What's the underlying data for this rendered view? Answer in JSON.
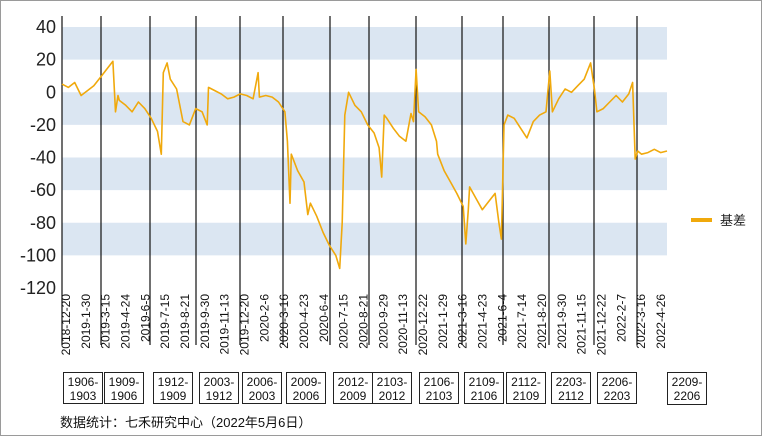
{
  "chart_data": {
    "type": "line",
    "title": "",
    "xlabel": "",
    "ylabel": "",
    "ylim": [
      -120,
      40
    ],
    "yticks": [
      40,
      20,
      0,
      -20,
      -40,
      -60,
      -80,
      -100,
      -120
    ],
    "grid": "alternating horizontal bands",
    "legend_position": "right",
    "xtick_labels": [
      "2018-12-20",
      "2019-1-30",
      "2019-3-15",
      "2019-4-24",
      "2019-6-5",
      "2019-7-15",
      "2019-8-21",
      "2019-9-30",
      "2019-11-13",
      "2019-12-20",
      "2020-2-6",
      "2020-3-16",
      "2020-4-23",
      "2020-6-4",
      "2020-7-15",
      "2020-8-21",
      "2020-9-29",
      "2020-11-13",
      "2020-12-22",
      "2021-1-29",
      "2021-3-16",
      "2021-4-23",
      "2021-6-4",
      "2021-7-14",
      "2021-8-20",
      "2021-9-30",
      "2021-11-15",
      "2021-12-22",
      "2022-2-7",
      "2022-3-16",
      "2022-4-26"
    ],
    "contract_boxes": [
      {
        "l1": "1906-",
        "l2": "1903"
      },
      {
        "l1": "1909-",
        "l2": "1906"
      },
      {
        "l1": "1912-",
        "l2": "1909"
      },
      {
        "l1": "2003-",
        "l2": "1912"
      },
      {
        "l1": "2006-",
        "l2": "2003"
      },
      {
        "l1": "2009-",
        "l2": "2006"
      },
      {
        "l1": "2012-",
        "l2": "2009"
      },
      {
        "l1": "2103-",
        "l2": "2012"
      },
      {
        "l1": "2106-",
        "l2": "2103"
      },
      {
        "l1": "2109-",
        "l2": "2106"
      },
      {
        "l1": "2112-",
        "l2": "2109"
      },
      {
        "l1": "2203-",
        "l2": "2112"
      },
      {
        "l1": "2206-",
        "l2": "2203"
      },
      {
        "l1": "2209-",
        "l2": "2206"
      }
    ],
    "series": [
      {
        "name": "基差",
        "color": "#f0a90c",
        "points": [
          [
            0,
            5
          ],
          [
            1,
            3
          ],
          [
            2,
            6
          ],
          [
            3,
            -2
          ],
          [
            4,
            1
          ],
          [
            5,
            4
          ],
          [
            6,
            9
          ],
          [
            7,
            14
          ],
          [
            8,
            19
          ],
          [
            8.4,
            -12
          ],
          [
            8.8,
            -2
          ],
          [
            9,
            -5
          ],
          [
            10,
            -8
          ],
          [
            11,
            -12
          ],
          [
            12,
            -6
          ],
          [
            13,
            -10
          ],
          [
            14,
            -16
          ],
          [
            15,
            -24
          ],
          [
            15.6,
            -38
          ],
          [
            15.9,
            12
          ],
          [
            16.5,
            18
          ],
          [
            17,
            8
          ],
          [
            18,
            2
          ],
          [
            19,
            -18
          ],
          [
            20,
            -20
          ],
          [
            21,
            -10
          ],
          [
            22,
            -12
          ],
          [
            22.8,
            -20
          ],
          [
            23,
            3
          ],
          [
            24,
            1
          ],
          [
            25,
            -1
          ],
          [
            26,
            -4
          ],
          [
            27,
            -3
          ],
          [
            28,
            -1
          ],
          [
            29,
            -2
          ],
          [
            30,
            -4
          ],
          [
            30.8,
            12
          ],
          [
            31,
            -3
          ],
          [
            32,
            -2
          ],
          [
            33,
            -3
          ],
          [
            34,
            -6
          ],
          [
            35,
            -12
          ],
          [
            35.4,
            -30
          ],
          [
            35.8,
            -68
          ],
          [
            36,
            -38
          ],
          [
            37,
            -48
          ],
          [
            38,
            -55
          ],
          [
            38.6,
            -75
          ],
          [
            39,
            -68
          ],
          [
            40,
            -76
          ],
          [
            41,
            -86
          ],
          [
            42,
            -94
          ],
          [
            43,
            -100
          ],
          [
            43.6,
            -108
          ],
          [
            44,
            -80
          ],
          [
            44.4,
            -14
          ],
          [
            45,
            0
          ],
          [
            46,
            -8
          ],
          [
            47,
            -12
          ],
          [
            48,
            -20
          ],
          [
            49,
            -25
          ],
          [
            49.8,
            -34
          ],
          [
            50.2,
            -52
          ],
          [
            50.6,
            -14
          ],
          [
            51,
            -16
          ],
          [
            52,
            -22
          ],
          [
            53,
            -27
          ],
          [
            54,
            -30
          ],
          [
            54.8,
            -13
          ],
          [
            55.2,
            -18
          ],
          [
            55.6,
            14
          ],
          [
            56,
            -12
          ],
          [
            57,
            -15
          ],
          [
            58,
            -20
          ],
          [
            58.8,
            -30
          ],
          [
            59,
            -38
          ],
          [
            60,
            -48
          ],
          [
            61,
            -55
          ],
          [
            62,
            -62
          ],
          [
            63,
            -70
          ],
          [
            63.4,
            -93
          ],
          [
            63.8,
            -72
          ],
          [
            64,
            -58
          ],
          [
            65,
            -65
          ],
          [
            66,
            -72
          ],
          [
            67,
            -67
          ],
          [
            68,
            -62
          ],
          [
            68.6,
            -80
          ],
          [
            69,
            -90
          ],
          [
            69.4,
            -20
          ],
          [
            70,
            -14
          ],
          [
            71,
            -16
          ],
          [
            72,
            -22
          ],
          [
            73,
            -28
          ],
          [
            74,
            -18
          ],
          [
            75,
            -14
          ],
          [
            76,
            -12
          ],
          [
            76.6,
            13
          ],
          [
            77,
            -12
          ],
          [
            78,
            -4
          ],
          [
            79,
            2
          ],
          [
            80,
            0
          ],
          [
            81,
            4
          ],
          [
            82,
            8
          ],
          [
            83,
            18
          ],
          [
            83.6,
            2
          ],
          [
            84,
            -12
          ],
          [
            85,
            -10
          ],
          [
            86,
            -6
          ],
          [
            87,
            -2
          ],
          [
            88,
            -6
          ],
          [
            89,
            -1
          ],
          [
            89.6,
            6
          ],
          [
            90,
            -41
          ],
          [
            90.4,
            -36
          ],
          [
            91,
            -38
          ],
          [
            92,
            -37
          ],
          [
            93,
            -35
          ],
          [
            94,
            -37
          ],
          [
            95,
            -36
          ]
        ]
      }
    ]
  },
  "legend": {
    "label": "基差"
  },
  "source": "数据统计：七禾研究中心（2022年5月6日）"
}
